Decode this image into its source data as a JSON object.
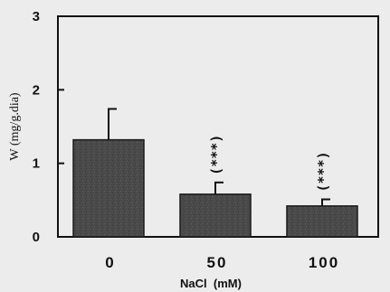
{
  "chart_data": {
    "type": "bar",
    "categories": [
      "0",
      "50",
      "100"
    ],
    "values": [
      1.32,
      0.58,
      0.42
    ],
    "errors": [
      0.42,
      0.16,
      0.09
    ],
    "annotations": [
      "",
      "(***)",
      "(***)"
    ],
    "xlabel": "NaCl  (mM)",
    "ylabel": "W (mg/g.dia)",
    "ylim": [
      0,
      3
    ],
    "yticks": [
      "0",
      "1",
      "2",
      "3"
    ],
    "grid": false,
    "colors": {
      "bar_fill": "#4a4a4a",
      "bar_edge": "#1a1a1a",
      "axis": "#111111",
      "background": "#ececec"
    }
  }
}
